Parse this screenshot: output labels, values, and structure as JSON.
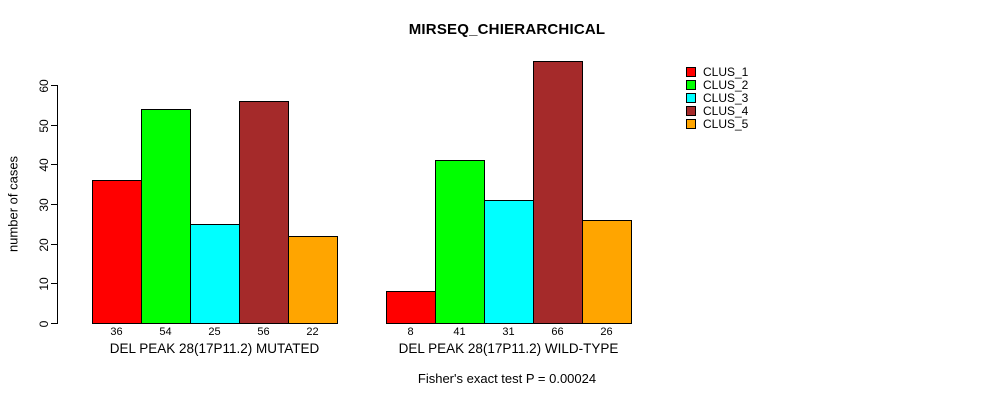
{
  "chart_data": {
    "type": "bar",
    "title": "MIRSEQ_CHIERARCHICAL",
    "ylabel": "number of cases",
    "xlabel": "",
    "ylim": [
      0,
      60
    ],
    "yticks": [
      0,
      10,
      20,
      30,
      40,
      50,
      60
    ],
    "grid": false,
    "legend_position": "top-right",
    "categories": [
      "DEL PEAK 28(17P11.2) MUTATED",
      "DEL PEAK 28(17P11.2) WILD-TYPE"
    ],
    "series": [
      {
        "name": "CLUS_1",
        "color": "#ff0000",
        "values": [
          36,
          8
        ]
      },
      {
        "name": "CLUS_2",
        "color": "#00ff00",
        "values": [
          54,
          41
        ]
      },
      {
        "name": "CLUS_3",
        "color": "#00ffff",
        "values": [
          25,
          31
        ]
      },
      {
        "name": "CLUS_4",
        "color": "#a52a2a",
        "values": [
          56,
          66
        ]
      },
      {
        "name": "CLUS_5",
        "color": "#ffa500",
        "values": [
          22,
          26
        ]
      }
    ],
    "bar_value_labels": [
      [
        36,
        54,
        25,
        56,
        22
      ],
      [
        8,
        41,
        31,
        66,
        26
      ]
    ],
    "annotation": "Fisher's exact test P = 0.00024",
    "bar_border_color": "#000000",
    "background_color": "#ffffff"
  }
}
